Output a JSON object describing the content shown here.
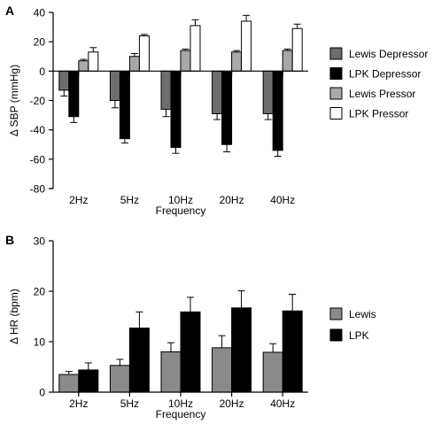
{
  "colors": {
    "axis": "#000000",
    "lewis_depressor": "#6d6d6d",
    "lpk_depressor": "#000000",
    "lewis_pressor": "#a8a8a8",
    "lpk_pressor": "#ffffff",
    "lewis_hr": "#8a8a8a",
    "lpk_hr": "#000000"
  },
  "chart_data": [
    {
      "panel_label": "A",
      "type": "bar",
      "ylabel": "Δ SBP (mmHg)",
      "xlabel": "Frequency",
      "categories": [
        "2Hz",
        "5Hz",
        "10Hz",
        "20Hz",
        "40Hz"
      ],
      "ylim": [
        -80,
        40
      ],
      "yticks": [
        40,
        20,
        0,
        -20,
        -40,
        -60,
        -80
      ],
      "legend_position": "right",
      "series": [
        {
          "name": "Lewis Depressor",
          "color_key": "lewis_depressor",
          "values": [
            -13,
            -20,
            -26,
            -29,
            -29
          ],
          "errors": [
            4,
            5,
            5,
            4,
            4
          ]
        },
        {
          "name": "LPK Depressor",
          "color_key": "lpk_depressor",
          "values": [
            -31,
            -46,
            -52,
            -50,
            -54
          ],
          "errors": [
            4,
            3,
            4,
            5,
            4
          ]
        },
        {
          "name": "Lewis Pressor",
          "color_key": "lewis_pressor",
          "values": [
            7,
            10,
            14,
            13,
            14
          ],
          "errors": [
            1,
            2,
            1,
            1,
            1
          ]
        },
        {
          "name": "LPK Pressor",
          "color_key": "lpk_pressor",
          "values": [
            13,
            24,
            31,
            34,
            29
          ],
          "errors": [
            3,
            1,
            4,
            4,
            3
          ]
        }
      ]
    },
    {
      "panel_label": "B",
      "type": "bar",
      "ylabel": "Δ HR (bpm)",
      "xlabel": "Frequency",
      "categories": [
        "2Hz",
        "5Hz",
        "10Hz",
        "20Hz",
        "40Hz"
      ],
      "ylim": [
        0,
        30
      ],
      "yticks": [
        30,
        20,
        10,
        0
      ],
      "legend_position": "right",
      "series": [
        {
          "name": "Lewis",
          "color_key": "lewis_hr",
          "values": [
            3.5,
            5.3,
            8.0,
            8.8,
            7.9
          ],
          "errors": [
            0.6,
            1.2,
            1.8,
            2.4,
            1.7
          ]
        },
        {
          "name": "LPK",
          "color_key": "lpk_hr",
          "values": [
            4.4,
            12.7,
            15.9,
            16.7,
            16.1
          ],
          "errors": [
            1.4,
            3.2,
            2.9,
            3.4,
            3.3
          ]
        }
      ]
    }
  ]
}
